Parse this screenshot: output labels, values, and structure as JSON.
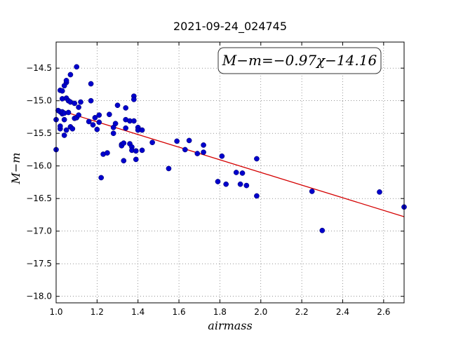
{
  "chart_data": {
    "type": "scatter",
    "title": "2021-09-24_024745",
    "xlabel": "airmass",
    "ylabel": "M−m",
    "xlim": [
      1.0,
      2.7
    ],
    "ylim": [
      -18.1,
      -14.1
    ],
    "y_inverted": true,
    "grid": true,
    "x_ticks": [
      1.0,
      1.2,
      1.4,
      1.6,
      1.8,
      2.0,
      2.2,
      2.4,
      2.6
    ],
    "x_tick_labels": [
      "1.0",
      "1.2",
      "1.4",
      "1.6",
      "1.8",
      "2.0",
      "2.2",
      "2.4",
      "2.6"
    ],
    "y_ticks": [
      -14.5,
      -15.0,
      -15.5,
      -16.0,
      -16.5,
      -17.0,
      -17.5,
      -18.0
    ],
    "y_tick_labels": [
      "−14.5",
      "−15.0",
      "−15.5",
      "−16.0",
      "−16.5",
      "−17.0",
      "−17.5",
      "−18.0"
    ],
    "annotation": "M−m=−0.97χ−14.16",
    "fit": {
      "slope": -0.97,
      "intercept": -14.16,
      "color": "#d40000"
    },
    "point_color": "#0000cc",
    "series": [
      {
        "points": [
          [
            1.0,
            -15.29
          ],
          [
            1.0,
            -15.75
          ],
          [
            1.01,
            -15.15
          ],
          [
            1.02,
            -14.84
          ],
          [
            1.02,
            -15.17
          ],
          [
            1.02,
            -15.43
          ],
          [
            1.02,
            -15.39
          ],
          [
            1.03,
            -14.85
          ],
          [
            1.03,
            -14.97
          ],
          [
            1.03,
            -15.2
          ],
          [
            1.03,
            -15.17
          ],
          [
            1.04,
            -14.77
          ],
          [
            1.04,
            -15.29
          ],
          [
            1.04,
            -15.53
          ],
          [
            1.04,
            -15.19
          ],
          [
            1.05,
            -14.72
          ],
          [
            1.05,
            -14.69
          ],
          [
            1.05,
            -14.96
          ],
          [
            1.05,
            -15.45
          ],
          [
            1.06,
            -15.18
          ],
          [
            1.06,
            -15.0
          ],
          [
            1.07,
            -14.6
          ],
          [
            1.07,
            -15.02
          ],
          [
            1.07,
            -15.4
          ],
          [
            1.08,
            -15.43
          ],
          [
            1.09,
            -15.04
          ],
          [
            1.09,
            -15.27
          ],
          [
            1.1,
            -15.26
          ],
          [
            1.1,
            -14.48
          ],
          [
            1.11,
            -15.22
          ],
          [
            1.11,
            -15.1
          ],
          [
            1.12,
            -15.02
          ],
          [
            1.16,
            -15.32
          ],
          [
            1.17,
            -14.74
          ],
          [
            1.17,
            -15.0
          ],
          [
            1.18,
            -15.37
          ],
          [
            1.19,
            -15.26
          ],
          [
            1.2,
            -15.44
          ],
          [
            1.21,
            -15.33
          ],
          [
            1.21,
            -15.22
          ],
          [
            1.22,
            -16.18
          ],
          [
            1.23,
            -15.82
          ],
          [
            1.25,
            -15.8
          ],
          [
            1.26,
            -15.21
          ],
          [
            1.28,
            -15.41
          ],
          [
            1.28,
            -15.5
          ],
          [
            1.29,
            -15.35
          ],
          [
            1.3,
            -15.07
          ],
          [
            1.32,
            -15.67
          ],
          [
            1.32,
            -15.69
          ],
          [
            1.33,
            -15.92
          ],
          [
            1.33,
            -15.65
          ],
          [
            1.34,
            -15.29
          ],
          [
            1.34,
            -15.11
          ],
          [
            1.34,
            -15.42
          ],
          [
            1.36,
            -15.31
          ],
          [
            1.36,
            -15.66
          ],
          [
            1.37,
            -15.71
          ],
          [
            1.37,
            -15.76
          ],
          [
            1.38,
            -15.31
          ],
          [
            1.38,
            -14.93
          ],
          [
            1.38,
            -14.98
          ],
          [
            1.39,
            -15.77
          ],
          [
            1.39,
            -15.9
          ],
          [
            1.4,
            -15.41
          ],
          [
            1.4,
            -15.45
          ],
          [
            1.42,
            -15.45
          ],
          [
            1.42,
            -15.76
          ],
          [
            1.47,
            -15.64
          ],
          [
            1.55,
            -16.04
          ],
          [
            1.59,
            -15.62
          ],
          [
            1.63,
            -15.75
          ],
          [
            1.65,
            -15.61
          ],
          [
            1.69,
            -15.81
          ],
          [
            1.72,
            -15.79
          ],
          [
            1.72,
            -15.68
          ],
          [
            1.79,
            -16.24
          ],
          [
            1.81,
            -15.85
          ],
          [
            1.83,
            -16.28
          ],
          [
            1.88,
            -16.1
          ],
          [
            1.9,
            -16.28
          ],
          [
            1.91,
            -16.11
          ],
          [
            1.93,
            -16.3
          ],
          [
            1.98,
            -15.89
          ],
          [
            1.98,
            -16.46
          ],
          [
            2.25,
            -16.39
          ],
          [
            2.3,
            -16.99
          ],
          [
            2.58,
            -16.4
          ],
          [
            2.7,
            -16.63
          ]
        ]
      }
    ]
  }
}
